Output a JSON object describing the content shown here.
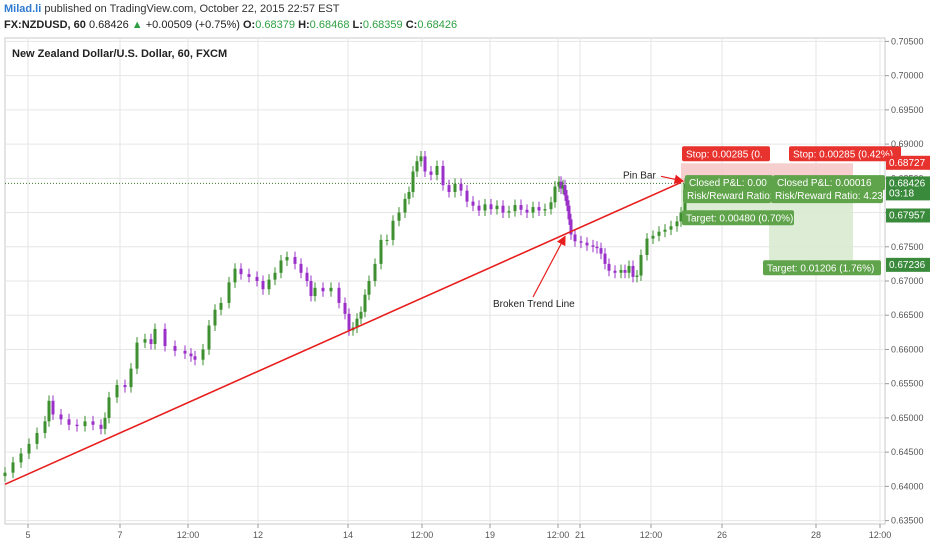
{
  "header": {
    "author": "Milad.li",
    "published": "published on TradingView.com, October 22, 2015 22:57 EST",
    "symbol": "FX:NZDUSD, 60",
    "last": "0.68426",
    "change_arrow": "▲",
    "change": "+0.00509 (+0.75%)",
    "o_label": "O:",
    "o": "0.68379",
    "h_label": "H:",
    "h": "0.68468",
    "l_label": "L:",
    "l": "0.68359",
    "c_label": "C:",
    "c": "0.68426"
  },
  "chart_data": {
    "type": "line",
    "title": "New Zealand Dollar/U.S. Dollar, 60, FXCM",
    "ylim": [
      0.6345,
      0.7055
    ],
    "y_ticks": [
      "0.70500",
      "0.70000",
      "0.69500",
      "0.69000",
      "0.68500",
      "0.68000",
      "0.67500",
      "0.67000",
      "0.66500",
      "0.66000",
      "0.65500",
      "0.65000",
      "0.64500",
      "0.64000",
      "0.63500"
    ],
    "x_ticks": [
      "5",
      "7",
      "12:00",
      "12",
      "14",
      "12:00",
      "19",
      "12:00",
      "21",
      "12:00",
      "26",
      "28",
      "12:00"
    ],
    "x_range": [
      0,
      880
    ],
    "series": [
      {
        "x": [
          0,
          8,
          16,
          24,
          32,
          40,
          44,
          48,
          56,
          64,
          72,
          80,
          88,
          96,
          100,
          104,
          112,
          120,
          126,
          132,
          140,
          146,
          150,
          160,
          170,
          180,
          186,
          190,
          198,
          204,
          210,
          216,
          224,
          230,
          236,
          244,
          252,
          258,
          264,
          270,
          276,
          282,
          290,
          296,
          302,
          306,
          310,
          318,
          326,
          334,
          340,
          344,
          348,
          352,
          356,
          360,
          364,
          370,
          376,
          382,
          388,
          394,
          400,
          404,
          408,
          412,
          416,
          420,
          426,
          432,
          438,
          444,
          450,
          456,
          462,
          468,
          474,
          480,
          486,
          492,
          498,
          504,
          510,
          516,
          522,
          528,
          534,
          540,
          546,
          550,
          554,
          556,
          558,
          560,
          562,
          564,
          566,
          570,
          576,
          582,
          588,
          592,
          596,
          600,
          604,
          610,
          616,
          620,
          624,
          628,
          632,
          636,
          642,
          648,
          654,
          660,
          666,
          672,
          676,
          680
        ],
        "y": [
          0.642,
          0.6435,
          0.6448,
          0.6462,
          0.6478,
          0.6495,
          0.6525,
          0.6505,
          0.6498,
          0.649,
          0.6488,
          0.6495,
          0.649,
          0.6484,
          0.65,
          0.653,
          0.6548,
          0.6545,
          0.6572,
          0.661,
          0.6615,
          0.6608,
          0.663,
          0.6605,
          0.6598,
          0.6594,
          0.659,
          0.6585,
          0.66,
          0.6635,
          0.6658,
          0.6668,
          0.6698,
          0.6718,
          0.671,
          0.6706,
          0.67,
          0.6688,
          0.6702,
          0.6712,
          0.673,
          0.6735,
          0.6725,
          0.6712,
          0.67,
          0.6678,
          0.669,
          0.6685,
          0.669,
          0.6668,
          0.6652,
          0.6628,
          0.6632,
          0.6645,
          0.6655,
          0.668,
          0.67,
          0.6725,
          0.676,
          0.676,
          0.6788,
          0.68,
          0.682,
          0.683,
          0.686,
          0.6875,
          0.6882,
          0.686,
          0.6855,
          0.6868,
          0.684,
          0.683,
          0.6842,
          0.6832,
          0.6816,
          0.681,
          0.6803,
          0.6812,
          0.6805,
          0.681,
          0.68,
          0.6802,
          0.6811,
          0.6804,
          0.68,
          0.6808,
          0.6803,
          0.6805,
          0.6815,
          0.6838,
          0.6845,
          0.6835,
          0.684,
          0.6825,
          0.681,
          0.679,
          0.6768,
          0.6758,
          0.6756,
          0.6752,
          0.675,
          0.6748,
          0.674,
          0.6725,
          0.6715,
          0.6712,
          0.6716,
          0.6712,
          0.6722,
          0.6706,
          0.6708,
          0.6738,
          0.6762,
          0.6766,
          0.6772,
          0.6775,
          0.678,
          0.6787,
          0.68,
          0.6842
        ]
      }
    ],
    "trend_line": {
      "label": "Broken Trend Line",
      "from": [
        0,
        0.6403
      ],
      "to": [
        676,
        0.6844
      ]
    },
    "price_line": 0.68426,
    "annotations": [
      {
        "text": "Pin Bar",
        "x": 618,
        "y": 0.685
      },
      {
        "text": "Broken Trend Line",
        "x": 488,
        "y": 0.6662
      }
    ],
    "positions": [
      {
        "x_start": 676,
        "x_end": 764,
        "stop_level": 0.6872,
        "entry": 0.6843,
        "target_level": 0.6796,
        "stop_label": "Stop: 0.00285 (0.",
        "closed_label": "Closed P&L: 0.00",
        "rr_label": "Risk/Reward Ratio:",
        "target_label": "Target: 0.00480 (0.70%)"
      },
      {
        "x_start": 764,
        "x_end": 848,
        "stop_level": 0.6872,
        "entry": 0.6843,
        "target_level": 0.6723,
        "stop_label": "Stop: 0.00285 (0.42%)",
        "closed_label": "Closed P&L: 0.00016",
        "rr_label": "Risk/Reward Ratio: 4.23",
        "target_label": "Target: 0.01206 (1.76%)"
      }
    ],
    "price_labels": [
      {
        "text": "0.68727",
        "y": 0.68727,
        "color": "#e8322e"
      },
      {
        "text": "0.68426",
        "y": 0.68426,
        "color": "#3a8a3c"
      },
      {
        "text": "03:18",
        "y": 0.6828,
        "color": "#3a8a3c"
      },
      {
        "text": "0.67957",
        "y": 0.67957,
        "color": "#3a8a3c"
      },
      {
        "text": "0.67236",
        "y": 0.67236,
        "color": "#3a8a3c"
      }
    ],
    "colors": {
      "up_candle": "#3d8f2f",
      "down_candle": "#9b30c8",
      "trend_line": "#e81e1e",
      "stop_zone": "#f5c6c6",
      "target_zone": "#d8ead0",
      "stop_label_bg": "#e8322e",
      "target_label_bg": "#5fa34a",
      "grid": "#e6e6e6"
    }
  }
}
